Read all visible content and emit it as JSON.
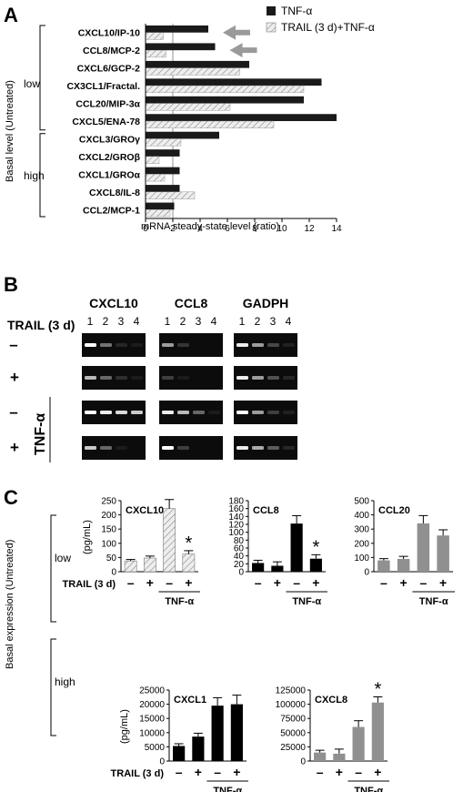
{
  "panel_labels": [
    "A",
    "B",
    "C"
  ],
  "chart_data": [
    {
      "id": "A",
      "type": "bar",
      "orientation": "horizontal",
      "categories": [
        "CXCL10/IP-10",
        "CCL8/MCP-2",
        "CXCL6/GCP-2",
        "CX3CL1/Fractal.",
        "CCL20/MIP-3α",
        "CXCL5/ENA-78",
        "CXCL3/GROγ",
        "CXCL2/GROβ",
        "CXCL1/GROα",
        "CXCL8/IL-8",
        "CCL2/MCP-1"
      ],
      "series": [
        {
          "name": "TNF-α",
          "values": [
            4.6,
            5.1,
            7.6,
            12.9,
            11.6,
            14.0,
            5.4,
            2.5,
            2.5,
            2.5,
            2.1
          ],
          "color": "#1a1a1a"
        },
        {
          "name": "TRAIL (3 d)+TNF-α",
          "values": [
            1.3,
            1.5,
            6.9,
            11.6,
            6.2,
            9.4,
            2.6,
            1.0,
            1.4,
            3.6,
            1.8
          ],
          "color": "#e8e8e8"
        }
      ],
      "xlabel": "mRNA steady-state level (ratio)",
      "xlim": [
        0,
        14
      ],
      "xticks": [
        "0",
        "2",
        "4",
        "6",
        "8",
        "10",
        "12",
        "14"
      ],
      "reference_line": 2,
      "arrows_on": [
        "CXCL10/IP-10",
        "CCL8/MCP-2"
      ],
      "group_axis_label": "Basal level (Untreated)",
      "groups": [
        {
          "name": "low",
          "categories": 6
        },
        {
          "name": "high",
          "categories": 5
        }
      ],
      "legend_position": "top-right"
    },
    {
      "id": "C-CXCL10",
      "type": "bar",
      "title": "CXCL10",
      "ylabel": "(pg/mL)",
      "values": [
        38,
        48,
        222,
        62
      ],
      "errors": [
        5,
        7,
        32,
        12
      ],
      "ylim": [
        0,
        250
      ],
      "yticks": [
        "0",
        "50",
        "100",
        "150",
        "200",
        "250"
      ],
      "fills": [
        "#d9d9d9",
        "#d9d9d9",
        "#d9d9d9",
        "#d9d9d9"
      ],
      "hatched": true,
      "significant": [
        false,
        false,
        false,
        true
      ]
    },
    {
      "id": "C-CCL8",
      "type": "bar",
      "title": "CCL8",
      "values": [
        22,
        15,
        122,
        33
      ],
      "errors": [
        7,
        10,
        20,
        10
      ],
      "ylim": [
        0,
        180
      ],
      "yticks": [
        "0",
        "20",
        "40",
        "60",
        "80",
        "100",
        "120",
        "140",
        "160",
        "180"
      ],
      "fills": [
        "#000000",
        "#000000",
        "#000000",
        "#000000"
      ],
      "hatched": false,
      "significant": [
        false,
        false,
        false,
        true
      ]
    },
    {
      "id": "C-CCL20",
      "type": "bar",
      "title": "CCL20",
      "values": [
        80,
        90,
        340,
        255
      ],
      "errors": [
        12,
        18,
        55,
        40
      ],
      "ylim": [
        0,
        500
      ],
      "yticks": [
        "0",
        "100",
        "200",
        "300",
        "400",
        "500"
      ],
      "fills": [
        "#909090",
        "#909090",
        "#909090",
        "#909090"
      ],
      "hatched": false,
      "significant": [
        false,
        false,
        false,
        false
      ]
    },
    {
      "id": "C-CXCL1",
      "type": "bar",
      "title": "CXCL1",
      "ylabel": "(pg/mL)",
      "values": [
        5300,
        8600,
        19500,
        20000
      ],
      "errors": [
        800,
        1200,
        2800,
        3200
      ],
      "ylim": [
        0,
        25000
      ],
      "yticks": [
        "0",
        "5000",
        "10000",
        "15000",
        "20000",
        "25000"
      ],
      "fills": [
        "#000000",
        "#000000",
        "#000000",
        "#000000"
      ],
      "hatched": false,
      "significant": [
        false,
        false,
        false,
        false
      ]
    },
    {
      "id": "C-CXCL8",
      "type": "bar",
      "title": "CXCL8",
      "values": [
        15000,
        13000,
        60000,
        103000
      ],
      "errors": [
        4000,
        8000,
        11000,
        10000
      ],
      "ylim": [
        0,
        125000
      ],
      "yticks": [
        "0",
        "25000",
        "50000",
        "75000",
        "100000",
        "125000"
      ],
      "fills": [
        "#909090",
        "#909090",
        "#909090",
        "#909090"
      ],
      "hatched": false,
      "significant": [
        false,
        false,
        false,
        true
      ]
    }
  ],
  "panel_b": {
    "genes": [
      "CXCL10",
      "CCL8",
      "GADPH"
    ],
    "lane_numbers": [
      "1",
      "2",
      "3",
      "4"
    ],
    "trail_label": "TRAIL (3 d)",
    "tnf_label": "TNF-α",
    "row_signs": [
      "–",
      "+",
      "–",
      "+"
    ],
    "band_intensity": [
      [
        [
          1.0,
          0.55,
          0.15,
          0.05
        ],
        [
          0.7,
          0.25,
          0,
          0
        ],
        [
          0.95,
          0.7,
          0.35,
          0.1
        ]
      ],
      [
        [
          0.8,
          0.5,
          0.2,
          0.05
        ],
        [
          0.3,
          0.05,
          0,
          0
        ],
        [
          0.95,
          0.7,
          0.4,
          0.15
        ]
      ],
      [
        [
          1.0,
          0.95,
          0.9,
          0.85
        ],
        [
          0.95,
          0.8,
          0.5,
          0.05
        ],
        [
          1.0,
          0.7,
          0.3,
          0.1
        ]
      ],
      [
        [
          0.85,
          0.5,
          0.05,
          0
        ],
        [
          1.0,
          0.3,
          0,
          0
        ],
        [
          0.95,
          0.75,
          0.45,
          0.15
        ]
      ]
    ]
  },
  "panel_c": {
    "group_axis_label": "Basal expression (Untreated)",
    "group_low": "low",
    "group_high": "high",
    "trail_label": "TRAIL (3 d)",
    "tnf_label": "TNF-α",
    "sign_minus": "–",
    "sign_plus": "+",
    "star": "*"
  }
}
